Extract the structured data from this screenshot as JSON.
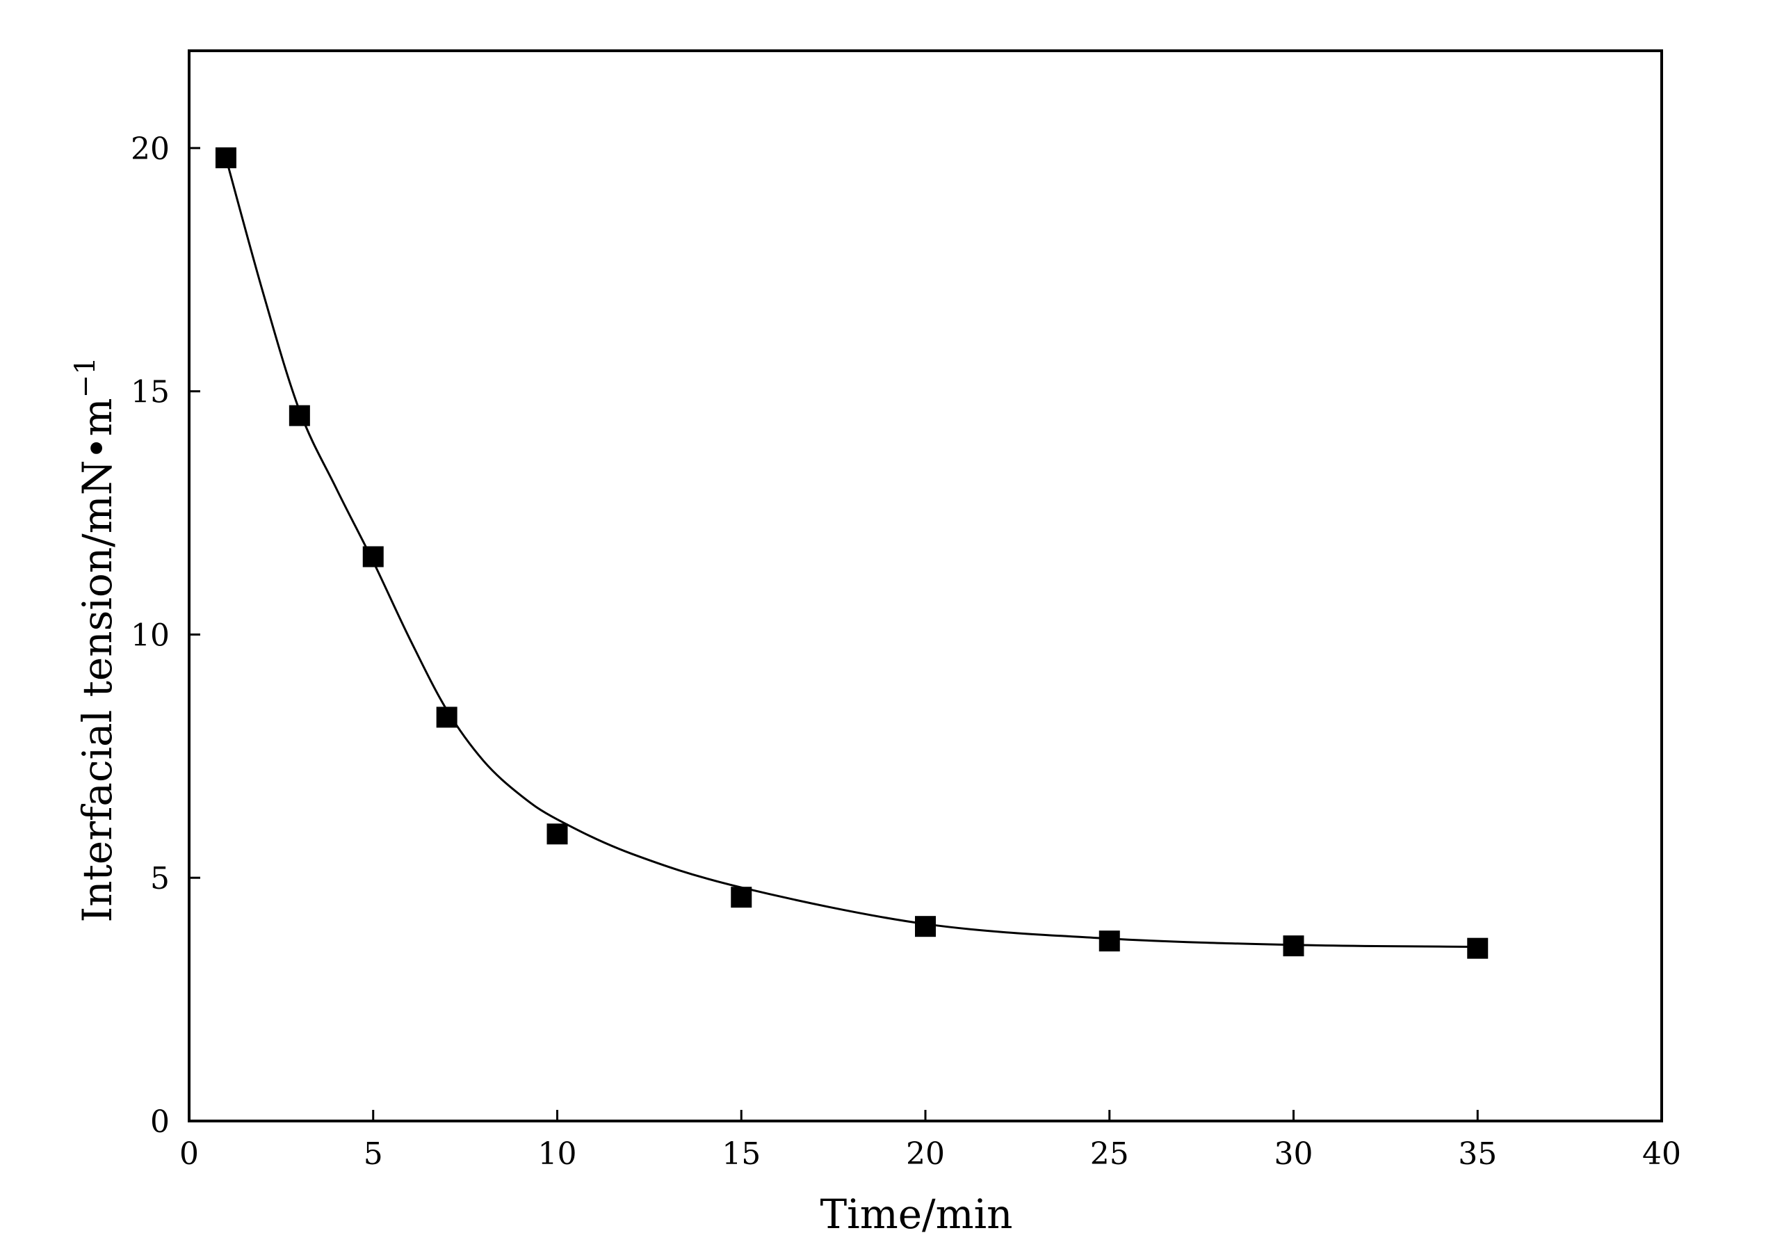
{
  "chart_data": {
    "type": "scatter",
    "xlabel": "Time/min",
    "ylabel": "Interfacial tension/mN•m",
    "ylabel_superscript": "−1",
    "xlim": [
      0,
      40
    ],
    "ylim": [
      0,
      22
    ],
    "x_ticks": [
      "0",
      "5",
      "10",
      "15",
      "20",
      "25",
      "30",
      "35",
      "40"
    ],
    "y_ticks": [
      "0",
      "5",
      "10",
      "15",
      "20"
    ],
    "grid": false,
    "legend": "none",
    "series": [
      {
        "marker": "square",
        "color": "#000000",
        "x": [
          1,
          3,
          5,
          7,
          10,
          15,
          20,
          25,
          30,
          35
        ],
        "y": [
          19.8,
          14.5,
          11.6,
          8.3,
          5.9,
          4.6,
          4.0,
          3.7,
          3.6,
          3.55
        ]
      }
    ],
    "fit_curve": {
      "type": "line",
      "color": "#000000",
      "x": [
        1,
        2,
        3,
        4,
        5,
        6,
        7,
        8,
        9,
        10,
        12,
        15,
        20,
        25,
        30,
        35
      ],
      "y": [
        19.8,
        17.05,
        14.6,
        13.0,
        11.5,
        9.9,
        8.45,
        7.4,
        6.7,
        6.2,
        5.5,
        4.8,
        4.05,
        3.75,
        3.62,
        3.58
      ]
    }
  }
}
